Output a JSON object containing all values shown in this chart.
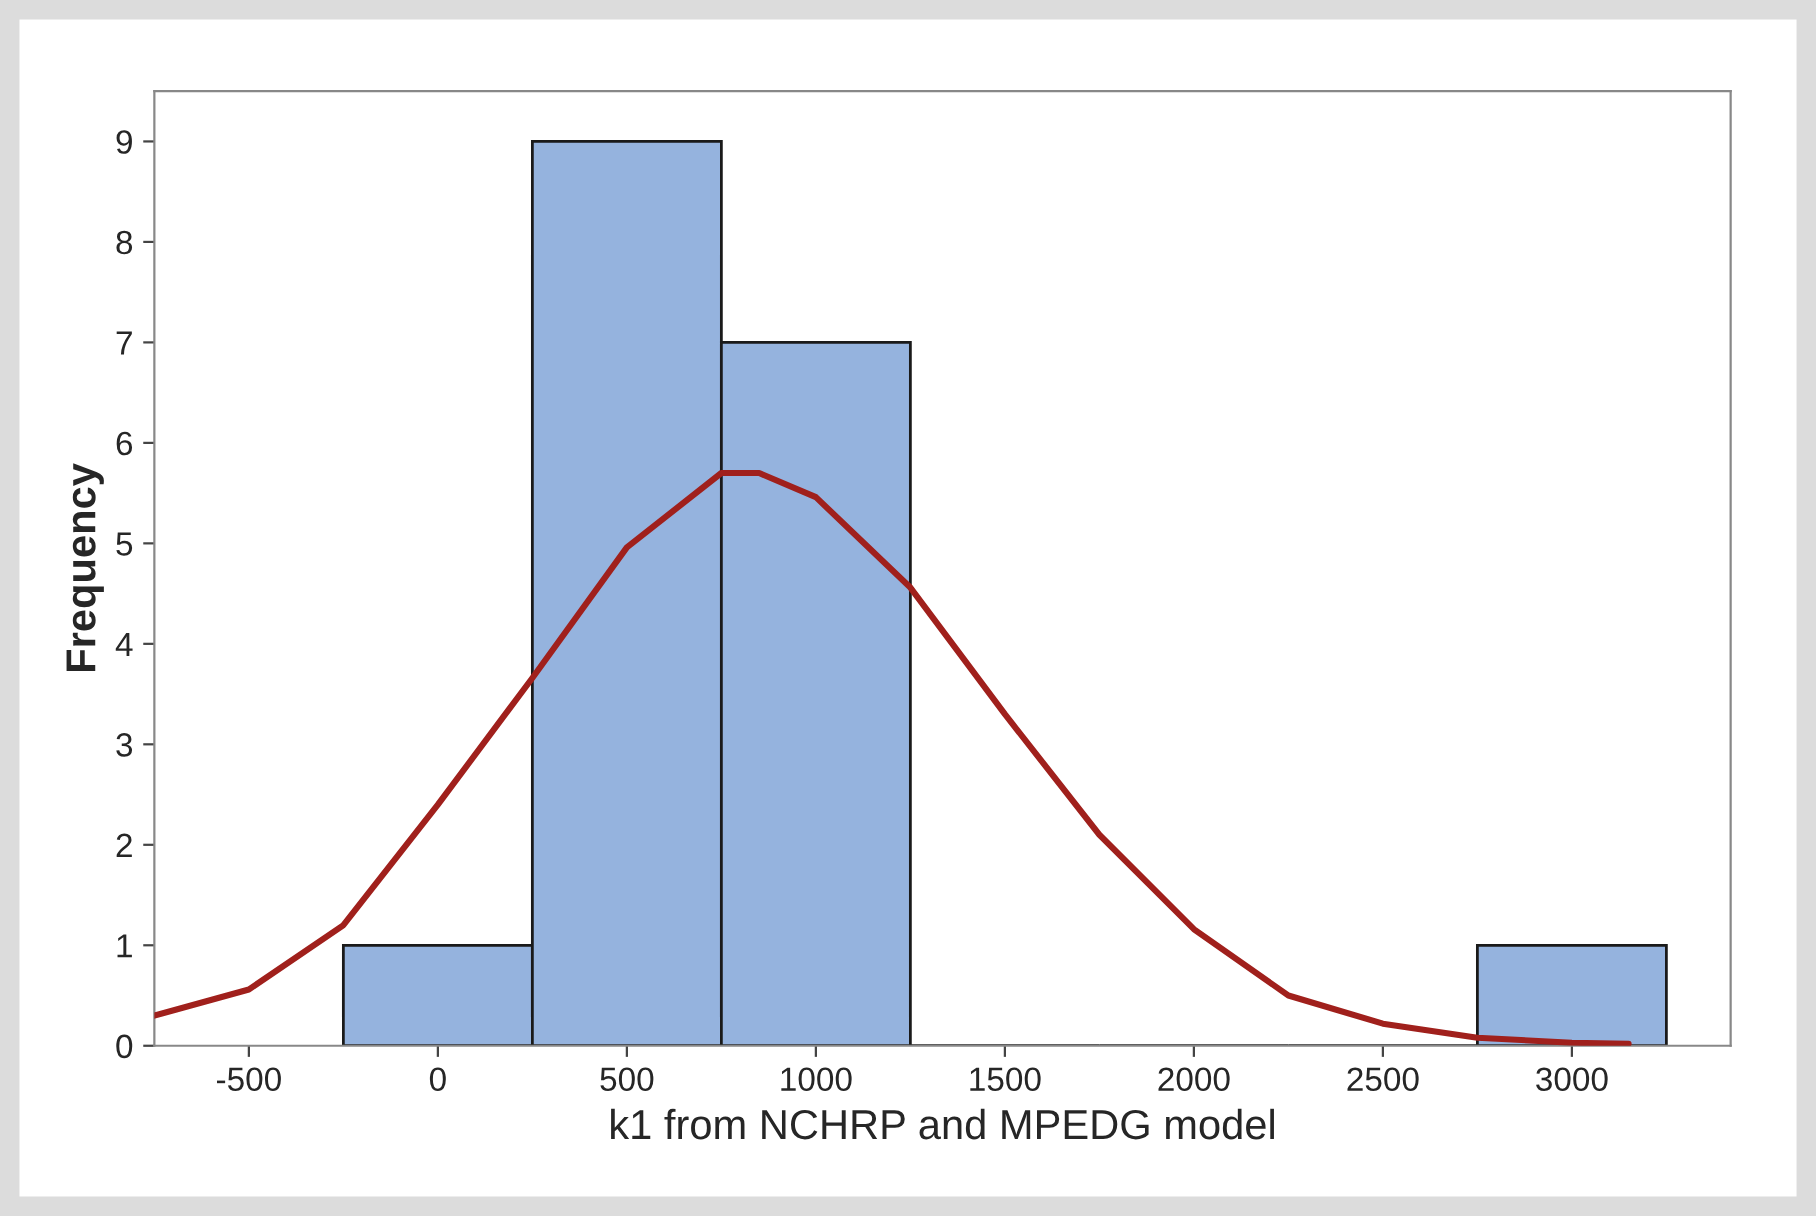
{
  "chart_data": {
    "type": "histogram",
    "xlabel": "k1 from NCHRP and MPEDG model",
    "ylabel": "Frequency",
    "bins": [
      -250,
      250,
      750,
      1250,
      1750,
      2250,
      2750,
      3250
    ],
    "values": [
      1,
      9,
      7,
      0,
      0,
      0,
      1
    ],
    "color": "#95b3de",
    "series": [
      {
        "type": "line",
        "color": "#a0201c",
        "x": [
          -750,
          -500,
          -250,
          0,
          250,
          500,
          750,
          850,
          1000,
          1250,
          1500,
          1750,
          2000,
          2250,
          2500,
          2750,
          3000,
          3150
        ],
        "values": [
          0.3,
          0.56,
          1.2,
          2.4,
          3.66,
          4.96,
          5.7,
          5.7,
          5.46,
          4.56,
          3.3,
          2.1,
          1.16,
          0.5,
          0.22,
          0.08,
          0.03,
          0.02
        ]
      }
    ],
    "xlim": [
      -750,
      3420
    ],
    "ylim": [
      0,
      9.5
    ],
    "xticks": [
      -500,
      0,
      500,
      1000,
      1500,
      2000,
      2500,
      3000
    ],
    "yticks": [
      0,
      1,
      2,
      3,
      4,
      5,
      6,
      7,
      8,
      9
    ],
    "grid": false,
    "legend": false
  }
}
